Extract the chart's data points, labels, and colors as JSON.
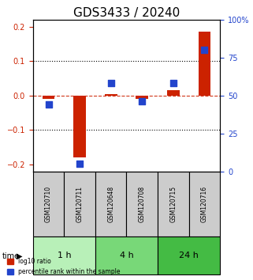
{
  "title": "GDS3433 / 20240",
  "samples": [
    "GSM120710",
    "GSM120711",
    "GSM120648",
    "GSM120708",
    "GSM120715",
    "GSM120716"
  ],
  "log10_ratio": [
    -0.01,
    -0.18,
    0.005,
    -0.01,
    0.015,
    0.185
  ],
  "percentile_rank": [
    44,
    5,
    58,
    46,
    58,
    80
  ],
  "time_groups": [
    {
      "label": "1 h",
      "samples": [
        "GSM120710",
        "GSM120711"
      ],
      "color": "#b8f0b8"
    },
    {
      "label": "4 h",
      "samples": [
        "GSM120648",
        "GSM120708"
      ],
      "color": "#78d878"
    },
    {
      "label": "24 h",
      "samples": [
        "GSM120715",
        "GSM120716"
      ],
      "color": "#44bb44"
    }
  ],
  "ylim_left": [
    -0.22,
    0.22
  ],
  "ylim_right": [
    0,
    100
  ],
  "yticks_left": [
    -0.2,
    -0.1,
    0.0,
    0.1,
    0.2
  ],
  "yticks_right": [
    0,
    25,
    50,
    75,
    100
  ],
  "bar_color_red": "#cc2200",
  "dot_color_blue": "#2244cc",
  "dotted_line_color_red": "#cc2200",
  "zero_line_alpha": 0.7,
  "grid_color": "black",
  "sample_box_color": "#cccccc",
  "title_fontsize": 11,
  "tick_fontsize": 7,
  "label_fontsize": 7
}
